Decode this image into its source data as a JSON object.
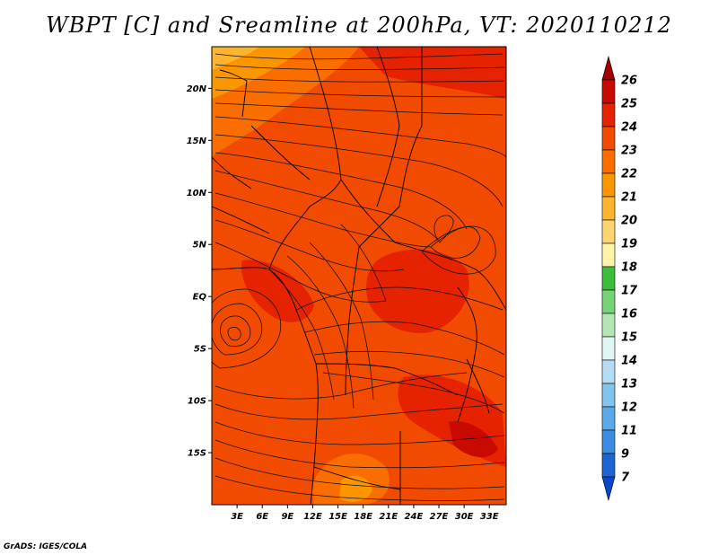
{
  "title": "WBPT [C] and Sreamline at 200hPa, VT: 2020110212",
  "credit": "GrADS: IGES/COLA",
  "map": {
    "lat_labels": [
      "20N",
      "15N",
      "10N",
      "5N",
      "EQ",
      "5S",
      "10S",
      "15S"
    ],
    "lon_labels": [
      "3E",
      "6E",
      "9E",
      "12E",
      "15E",
      "18E",
      "21E",
      "24E",
      "27E",
      "30E",
      "33E"
    ],
    "lon_range_deg": [
      0,
      35
    ],
    "lat_range_deg": [
      -20,
      24
    ]
  },
  "colorbar": {
    "levels": [
      "26",
      "25",
      "24",
      "23",
      "22",
      "21",
      "20",
      "19",
      "18",
      "17",
      "16",
      "15",
      "14",
      "13",
      "12",
      "11",
      "9",
      "7"
    ],
    "colors": [
      "#a00000",
      "#c80a00",
      "#e62300",
      "#f04b00",
      "#fa6e00",
      "#fa9600",
      "#fdb42e",
      "#fdd46f",
      "#fef5a8",
      "#3cbe3c",
      "#78d278",
      "#b4e6b4",
      "#e1f5f5",
      "#b4dcf5",
      "#82c3f0",
      "#5aaaeb",
      "#3c8ce1",
      "#1e64d2",
      "#0a46c8"
    ]
  }
}
